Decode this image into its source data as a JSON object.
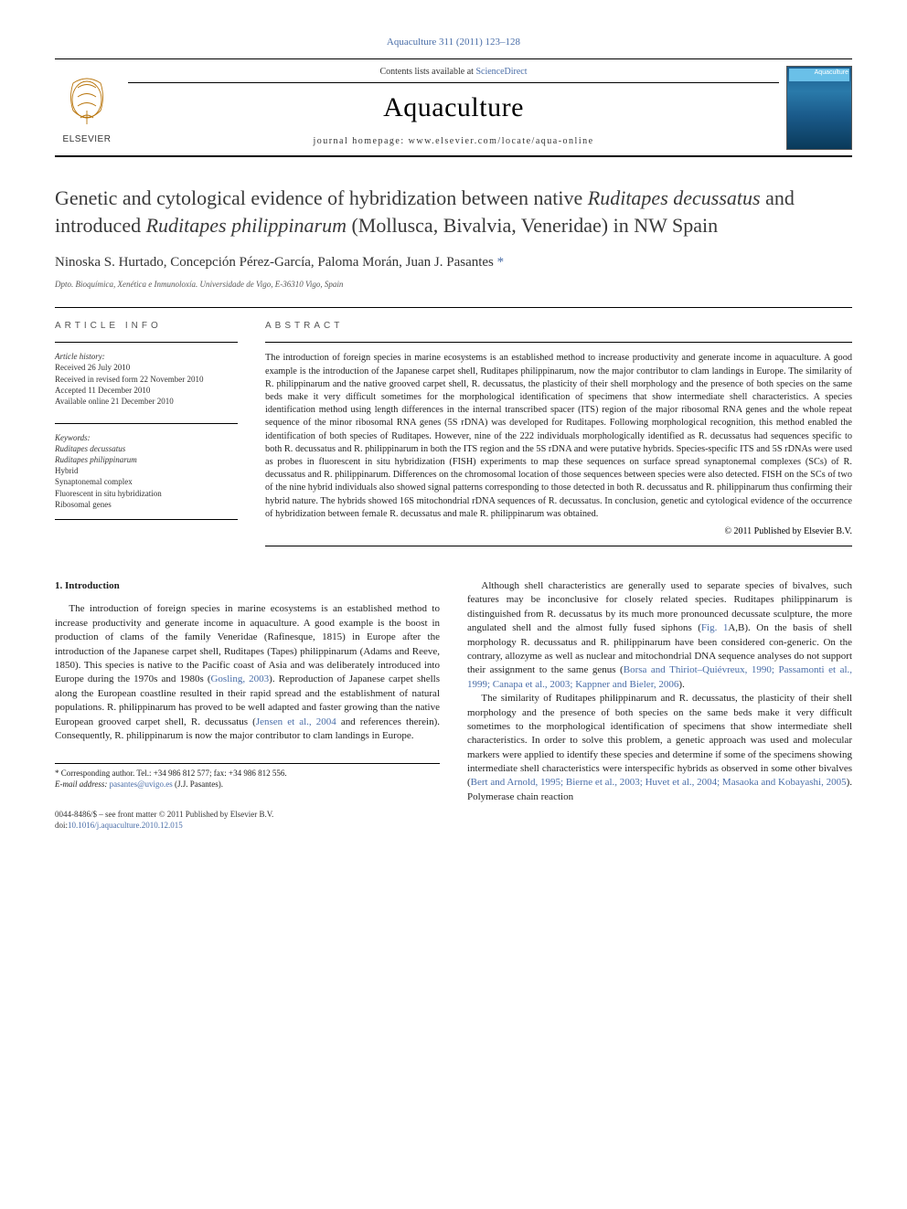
{
  "journal_ref": "Aquaculture 311 (2011) 123–128",
  "header": {
    "contents_prefix": "Contents lists available at ",
    "contents_link": "ScienceDirect",
    "journal_name": "Aquaculture",
    "homepage_label": "journal homepage: www.elsevier.com/locate/aqua-online",
    "publisher_logo_alt": "ELSEVIER",
    "cover_title": "Aquaculture"
  },
  "article": {
    "title_html": "Genetic and cytological evidence of hybridization between native <em>Ruditapes decussatus</em> and introduced <em>Ruditapes philippinarum</em> (Mollusca, Bivalvia, Veneridae) in NW Spain",
    "authors": "Ninoska S. Hurtado, Concepción Pérez-García, Paloma Morán, Juan J. Pasantes",
    "corr_mark": "*",
    "affiliation": "Dpto. Bioquímica, Xenética e Inmunoloxía. Universidade de Vigo, E-36310 Vigo, Spain"
  },
  "meta": {
    "info_heading": "ARTICLE INFO",
    "abstract_heading": "ABSTRACT",
    "history_title": "Article history:",
    "history": {
      "received": "Received 26 July 2010",
      "revised": "Received in revised form 22 November 2010",
      "accepted": "Accepted 11 December 2010",
      "online": "Available online 21 December 2010"
    },
    "keywords_title": "Keywords:",
    "keywords": [
      "Ruditapes decussatus",
      "Ruditapes philippinarum",
      "Hybrid",
      "Synaptonemal complex",
      "Fluorescent in situ hybridization",
      "Ribosomal genes"
    ]
  },
  "abstract": {
    "text": "The introduction of foreign species in marine ecosystems is an established method to increase productivity and generate income in aquaculture. A good example is the introduction of the Japanese carpet shell, Ruditapes philippinarum, now the major contributor to clam landings in Europe. The similarity of R. philippinarum and the native grooved carpet shell, R. decussatus, the plasticity of their shell morphology and the presence of both species on the same beds make it very difficult sometimes for the morphological identification of specimens that show intermediate shell characteristics. A species identification method using length differences in the internal transcribed spacer (ITS) region of the major ribosomal RNA genes and the whole repeat sequence of the minor ribosomal RNA genes (5S rDNA) was developed for Ruditapes. Following morphological recognition, this method enabled the identification of both species of Ruditapes. However, nine of the 222 individuals morphologically identified as R. decussatus had sequences specific to both R. decussatus and R. philippinarum in both the ITS region and the 5S rDNA and were putative hybrids. Species-specific ITS and 5S rDNAs were used as probes in fluorescent in situ hybridization (FISH) experiments to map these sequences on surface spread synaptonemal complexes (SCs) of R. decussatus and R. philippinarum. Differences on the chromosomal location of those sequences between species were also detected. FISH on the SCs of two of the nine hybrid individuals also showed signal patterns corresponding to those detected in both R. decussatus and R. philippinarum thus confirming their hybrid nature. The hybrids showed 16S mitochondrial rDNA sequences of R. decussatus. In conclusion, genetic and cytological evidence of the occurrence of hybridization between female R. decussatus and male R. philippinarum was obtained.",
    "copyright": "© 2011 Published by Elsevier B.V."
  },
  "body": {
    "section_number": "1.",
    "section_title": "Introduction",
    "col1": {
      "p1": "The introduction of foreign species in marine ecosystems is an established method to increase productivity and generate income in aquaculture. A good example is the boost in production of clams of the family Veneridae (Rafinesque, 1815) in Europe after the introduction of the Japanese carpet shell, Ruditapes (Tapes) philippinarum (Adams and Reeve, 1850). This species is native to the Pacific coast of Asia and was deliberately introduced into Europe during the 1970s and 1980s (",
      "p1_link": "Gosling, 2003",
      "p1b": "). Reproduction of Japanese carpet shells along the European coastline resulted in their rapid spread and the establishment of natural populations. R. philippinarum has proved to be well adapted and faster growing than the native European grooved carpet shell, R. decussatus (",
      "p1_link2": "Jensen et al., 2004",
      "p1c": " and references therein). Consequently, R. philippinarum is now the major contributor to clam landings in Europe."
    },
    "col2": {
      "p1": "Although shell characteristics are generally used to separate species of bivalves, such features may be inconclusive for closely related species. Ruditapes philippinarum is distinguished from R. decussatus by its much more pronounced decussate sculpture, the more angulated shell and the almost fully fused siphons (",
      "p1_link": "Fig. 1",
      "p1b": "A,B). On the basis of shell morphology R. decussatus and R. philippinarum have been considered con-generic. On the contrary, allozyme as well as nuclear and mitochondrial DNA sequence analyses do not support their assignment to the same genus (",
      "p1_link2": "Borsa and Thiriot–Quiévreux, 1990; Passamonti et al., 1999; Canapa et al., 2003; Kappner and Bieler, 2006",
      "p1c": ").",
      "p2": "The similarity of Ruditapes philippinarum and R. decussatus, the plasticity of their shell morphology and the presence of both species on the same beds make it very difficult sometimes to the morphological identification of specimens that show intermediate shell characteristics. In order to solve this problem, a genetic approach was used and molecular markers were applied to identify these species and determine if some of the specimens showing intermediate shell characteristics were interspecific hybrids as observed in some other bivalves (",
      "p2_link": "Bert and Arnold, 1995; Bierne et al., 2003; Huvet et al., 2004; Masaoka and Kobayashi, 2005",
      "p2b": "). Polymerase chain reaction"
    }
  },
  "footnote": {
    "corr_label": "* Corresponding author. Tel.: +34 986 812 577; fax: +34 986 812 556.",
    "email_label": "E-mail address:",
    "email": "pasantes@uvigo.es",
    "email_name": "(J.J. Pasantes)."
  },
  "footer": {
    "line1": "0044-8486/$ – see front matter © 2011 Published by Elsevier B.V.",
    "line2": "doi:10.1016/j.aquaculture.2010.12.015"
  },
  "colors": {
    "link": "#4a6ea8",
    "text": "#222222",
    "rule": "#000000"
  }
}
